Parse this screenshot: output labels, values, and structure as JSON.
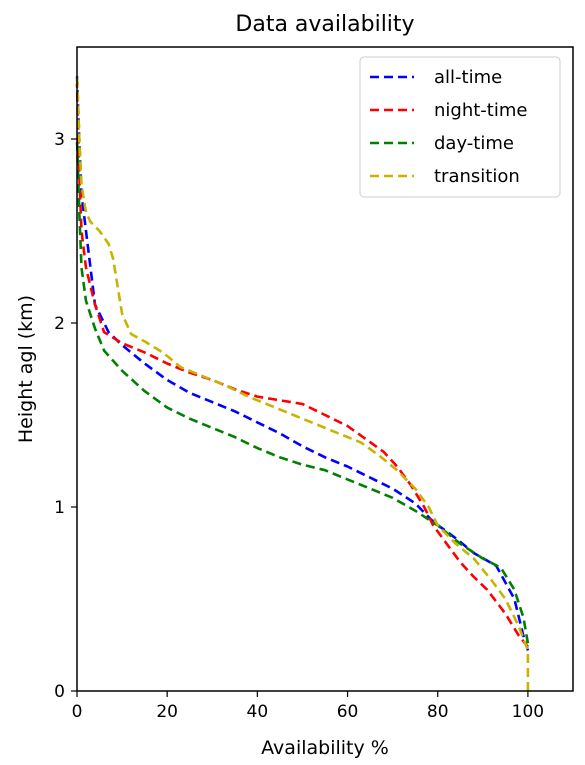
{
  "chart_data": {
    "type": "line",
    "title": "Data availability",
    "xlabel": "Availability %",
    "ylabel": "Height agl (km)",
    "xlim": [
      0,
      110
    ],
    "ylim": [
      0,
      3.5
    ],
    "xticks": [
      0,
      20,
      40,
      60,
      80,
      100
    ],
    "yticks": [
      0,
      1,
      2,
      3
    ],
    "grid": false,
    "legend_position": "top-right",
    "series": [
      {
        "name": "all-time",
        "color": "#0000ff",
        "points": [
          [
            100,
            0.22
          ],
          [
            99,
            0.3
          ],
          [
            97,
            0.5
          ],
          [
            93,
            0.68
          ],
          [
            88,
            0.75
          ],
          [
            84,
            0.83
          ],
          [
            79,
            0.92
          ],
          [
            75,
            1.02
          ],
          [
            70,
            1.1
          ],
          [
            65,
            1.16
          ],
          [
            60,
            1.22
          ],
          [
            55,
            1.27
          ],
          [
            50,
            1.33
          ],
          [
            45,
            1.4
          ],
          [
            40,
            1.46
          ],
          [
            35,
            1.52
          ],
          [
            30,
            1.57
          ],
          [
            25,
            1.62
          ],
          [
            20,
            1.69
          ],
          [
            15,
            1.78
          ],
          [
            10,
            1.88
          ],
          [
            7,
            1.95
          ],
          [
            4,
            2.1
          ],
          [
            3,
            2.3
          ],
          [
            2,
            2.5
          ],
          [
            1,
            2.7
          ],
          [
            0.5,
            3.0
          ],
          [
            0,
            3.35
          ]
        ]
      },
      {
        "name": "night-time",
        "color": "#ff0000",
        "points": [
          [
            100,
            0.24
          ],
          [
            98,
            0.3
          ],
          [
            95,
            0.42
          ],
          [
            91,
            0.55
          ],
          [
            88,
            0.62
          ],
          [
            85,
            0.7
          ],
          [
            82,
            0.8
          ],
          [
            79,
            0.9
          ],
          [
            77,
            1.0
          ],
          [
            74,
            1.12
          ],
          [
            71,
            1.22
          ],
          [
            68,
            1.3
          ],
          [
            64,
            1.37
          ],
          [
            60,
            1.44
          ],
          [
            55,
            1.5
          ],
          [
            50,
            1.56
          ],
          [
            45,
            1.58
          ],
          [
            40,
            1.6
          ],
          [
            35,
            1.64
          ],
          [
            30,
            1.69
          ],
          [
            25,
            1.73
          ],
          [
            20,
            1.78
          ],
          [
            15,
            1.84
          ],
          [
            10,
            1.89
          ],
          [
            6,
            1.95
          ],
          [
            4,
            2.1
          ],
          [
            2,
            2.3
          ],
          [
            1,
            2.5
          ],
          [
            0.5,
            2.8
          ],
          [
            0,
            3.3
          ]
        ]
      },
      {
        "name": "day-time",
        "color": "#008000",
        "points": [
          [
            100,
            0.26
          ],
          [
            99,
            0.4
          ],
          [
            97,
            0.55
          ],
          [
            94,
            0.67
          ],
          [
            90,
            0.72
          ],
          [
            85,
            0.8
          ],
          [
            80,
            0.9
          ],
          [
            75,
            0.98
          ],
          [
            70,
            1.05
          ],
          [
            65,
            1.1
          ],
          [
            60,
            1.15
          ],
          [
            55,
            1.2
          ],
          [
            50,
            1.23
          ],
          [
            45,
            1.27
          ],
          [
            40,
            1.32
          ],
          [
            35,
            1.38
          ],
          [
            30,
            1.43
          ],
          [
            25,
            1.48
          ],
          [
            20,
            1.54
          ],
          [
            15,
            1.63
          ],
          [
            10,
            1.74
          ],
          [
            6,
            1.85
          ],
          [
            4,
            1.97
          ],
          [
            2,
            2.12
          ],
          [
            1,
            2.3
          ],
          [
            0.5,
            2.6
          ],
          [
            0,
            3.0
          ]
        ]
      },
      {
        "name": "transition",
        "color": "#c8b400",
        "points": [
          [
            100,
            0.0
          ],
          [
            100,
            0.22
          ],
          [
            98,
            0.35
          ],
          [
            95,
            0.5
          ],
          [
            92,
            0.6
          ],
          [
            88,
            0.72
          ],
          [
            84,
            0.8
          ],
          [
            80,
            0.9
          ],
          [
            78,
            1.0
          ],
          [
            75,
            1.1
          ],
          [
            71,
            1.2
          ],
          [
            67,
            1.28
          ],
          [
            63,
            1.35
          ],
          [
            58,
            1.4
          ],
          [
            53,
            1.45
          ],
          [
            48,
            1.5
          ],
          [
            43,
            1.55
          ],
          [
            38,
            1.6
          ],
          [
            33,
            1.66
          ],
          [
            28,
            1.71
          ],
          [
            23,
            1.76
          ],
          [
            19,
            1.84
          ],
          [
            15,
            1.9
          ],
          [
            12,
            1.94
          ],
          [
            10,
            2.05
          ],
          [
            9,
            2.2
          ],
          [
            8,
            2.35
          ],
          [
            7,
            2.43
          ],
          [
            5,
            2.5
          ],
          [
            3,
            2.55
          ],
          [
            2,
            2.6
          ],
          [
            1,
            2.75
          ],
          [
            0.5,
            3.0
          ],
          [
            0,
            3.35
          ]
        ]
      }
    ]
  }
}
